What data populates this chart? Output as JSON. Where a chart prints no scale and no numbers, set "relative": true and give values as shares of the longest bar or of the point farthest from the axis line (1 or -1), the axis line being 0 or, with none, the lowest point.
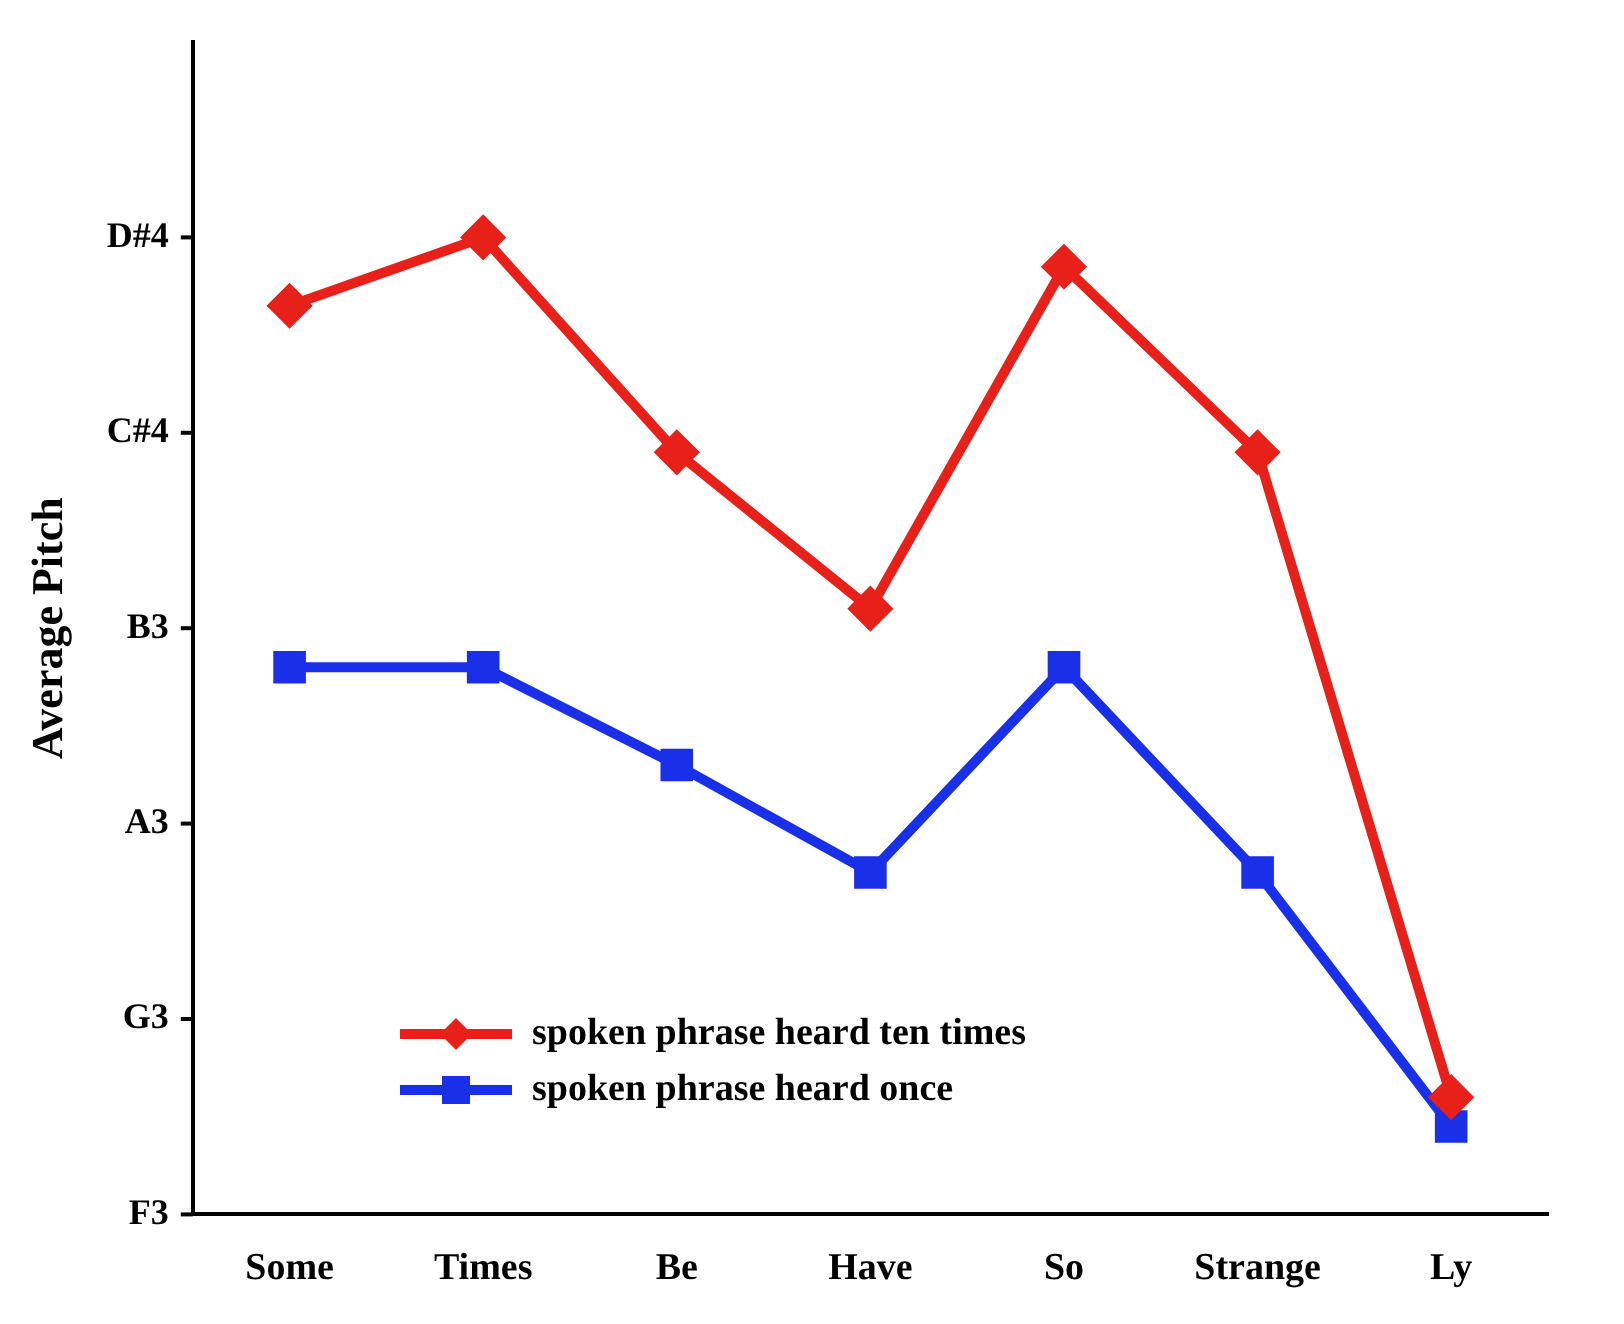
{
  "chart_data": {
    "type": "line",
    "ylabel": "Average Pitch",
    "categories": [
      "Some",
      "Times",
      "Be",
      "Have",
      "So",
      "Strange",
      "Ly"
    ],
    "series": [
      {
        "name": "spoken phrase heard ten times",
        "color": "#e8201a",
        "marker": "diamond",
        "values": [
          0.93,
          1.0,
          0.78,
          0.62,
          0.97,
          0.78,
          0.12
        ]
      },
      {
        "name": "spoken phrase heard once",
        "color": "#1a2fe8",
        "marker": "square",
        "values": [
          0.56,
          0.56,
          0.46,
          0.35,
          0.56,
          0.35,
          0.09
        ]
      }
    ],
    "relative": true,
    "annotations": [
      "F3",
      "G3",
      "A3",
      "B3",
      "C#4",
      "D#4"
    ],
    "grid": false,
    "legend": "bottom left",
    "line_style": "solid"
  }
}
